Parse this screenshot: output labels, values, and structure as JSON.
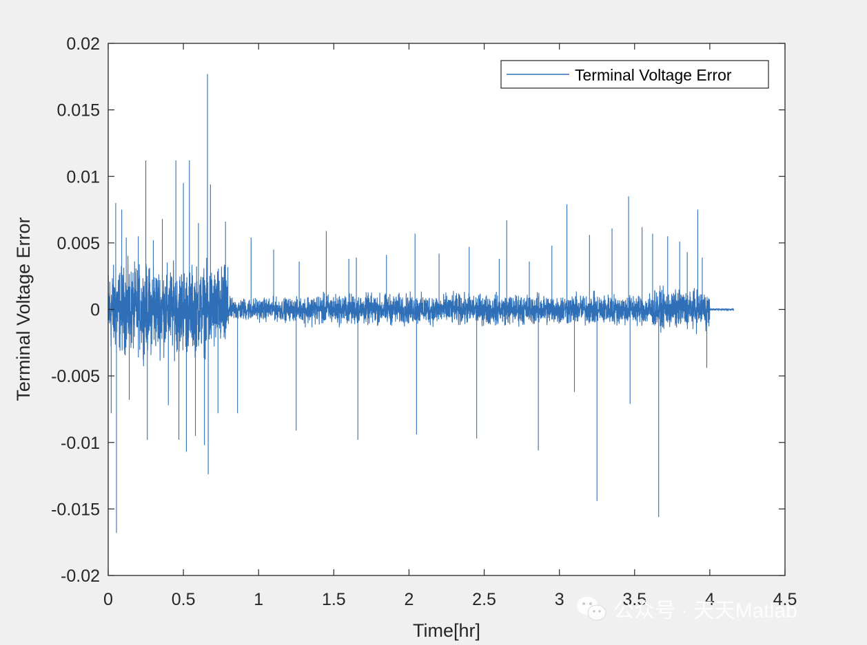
{
  "chart_data": {
    "type": "line",
    "xlabel": "Time[hr]",
    "ylabel": "Terminal Voltage Error",
    "xlim": [
      0,
      4.5
    ],
    "ylim": [
      -0.02,
      0.02
    ],
    "xticks": [
      0,
      0.5,
      1,
      1.5,
      2,
      2.5,
      3,
      3.5,
      4,
      4.5
    ],
    "xtick_labels": [
      "0",
      "0.5",
      "1",
      "1.5",
      "2",
      "2.5",
      "3",
      "3.5",
      "4",
      "4.5"
    ],
    "yticks": [
      -0.02,
      -0.015,
      -0.01,
      -0.005,
      0,
      0.005,
      0.01,
      0.015,
      0.02
    ],
    "ytick_labels": [
      "-0.02",
      "-0.015",
      "-0.01",
      "-0.005",
      "0",
      "0.005",
      "0.01",
      "0.015",
      "0.02"
    ],
    "grid": false,
    "legend_position": "top-right",
    "series": [
      {
        "name": "Terminal Voltage Error",
        "color": "#2f6fb8",
        "segments": [
          {
            "x": [
              0,
              0.8
            ],
            "amplitude": 0.0045
          },
          {
            "x": [
              0.8,
              1.3
            ],
            "amplitude": 0.0012
          },
          {
            "x": [
              1.3,
              3.6
            ],
            "amplitude": 0.0016
          },
          {
            "x": [
              3.6,
              4.0
            ],
            "amplitude": 0.002
          },
          {
            "x": [
              4.0,
              4.16
            ],
            "amplitude": 0.0001
          }
        ],
        "spikes": [
          {
            "x": 0.02,
            "y": -0.0078
          },
          {
            "x": 0.05,
            "y": 0.008
          },
          {
            "x": 0.055,
            "y": -0.0168
          },
          {
            "x": 0.09,
            "y": 0.0075
          },
          {
            "x": 0.12,
            "y": 0.0054
          },
          {
            "x": 0.14,
            "y": -0.0068
          },
          {
            "x": 0.2,
            "y": 0.0055
          },
          {
            "x": 0.25,
            "y": 0.0112
          },
          {
            "x": 0.26,
            "y": -0.0098
          },
          {
            "x": 0.3,
            "y": 0.0052
          },
          {
            "x": 0.36,
            "y": 0.0068
          },
          {
            "x": 0.4,
            "y": -0.0072
          },
          {
            "x": 0.45,
            "y": 0.0112
          },
          {
            "x": 0.47,
            "y": -0.0098
          },
          {
            "x": 0.5,
            "y": 0.0095
          },
          {
            "x": 0.52,
            "y": -0.0107
          },
          {
            "x": 0.54,
            "y": 0.0112
          },
          {
            "x": 0.58,
            "y": -0.0095
          },
          {
            "x": 0.6,
            "y": 0.0065
          },
          {
            "x": 0.64,
            "y": -0.0102
          },
          {
            "x": 0.66,
            "y": 0.0177
          },
          {
            "x": 0.665,
            "y": -0.0124
          },
          {
            "x": 0.68,
            "y": 0.0094
          },
          {
            "x": 0.73,
            "y": -0.0078
          },
          {
            "x": 0.78,
            "y": 0.0066
          },
          {
            "x": 0.86,
            "y": -0.0078
          },
          {
            "x": 0.95,
            "y": 0.0054
          },
          {
            "x": 1.1,
            "y": 0.0045
          },
          {
            "x": 1.25,
            "y": -0.0091
          },
          {
            "x": 1.27,
            "y": 0.0036
          },
          {
            "x": 1.45,
            "y": 0.0059
          },
          {
            "x": 1.6,
            "y": 0.0038
          },
          {
            "x": 1.65,
            "y": 0.0039
          },
          {
            "x": 1.66,
            "y": -0.0098
          },
          {
            "x": 1.85,
            "y": 0.0041
          },
          {
            "x": 2.04,
            "y": 0.0057
          },
          {
            "x": 2.05,
            "y": -0.0094
          },
          {
            "x": 2.2,
            "y": 0.0042
          },
          {
            "x": 2.4,
            "y": 0.0047
          },
          {
            "x": 2.45,
            "y": -0.0097
          },
          {
            "x": 2.6,
            "y": 0.0038
          },
          {
            "x": 2.65,
            "y": 0.0067
          },
          {
            "x": 2.8,
            "y": 0.0036
          },
          {
            "x": 2.86,
            "y": -0.0106
          },
          {
            "x": 2.95,
            "y": 0.0048
          },
          {
            "x": 3.05,
            "y": 0.0079
          },
          {
            "x": 3.1,
            "y": -0.0062
          },
          {
            "x": 3.2,
            "y": 0.0056
          },
          {
            "x": 3.25,
            "y": -0.0144
          },
          {
            "x": 3.35,
            "y": 0.0061
          },
          {
            "x": 3.46,
            "y": 0.0085
          },
          {
            "x": 3.47,
            "y": -0.0071
          },
          {
            "x": 3.55,
            "y": 0.0062
          },
          {
            "x": 3.62,
            "y": 0.0057
          },
          {
            "x": 3.66,
            "y": -0.0156
          },
          {
            "x": 3.72,
            "y": 0.0055
          },
          {
            "x": 3.8,
            "y": 0.0051
          },
          {
            "x": 3.85,
            "y": 0.0043
          },
          {
            "x": 3.92,
            "y": 0.0075
          },
          {
            "x": 3.95,
            "y": 0.0039
          },
          {
            "x": 3.98,
            "y": -0.0044
          }
        ]
      }
    ]
  },
  "watermark": {
    "text": "公众号 · 天天Matlab",
    "icon": "wechat-icon"
  }
}
